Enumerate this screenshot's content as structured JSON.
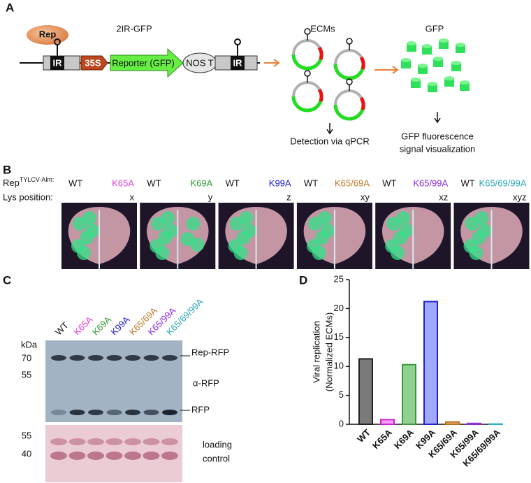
{
  "panel_a": {
    "letter": "A",
    "construct": "2IR-GFP",
    "rep": "Rep",
    "ir_left": "IR",
    "promoter": "35S",
    "reporter": "Reporter (GFP)",
    "terminator": "NOS T",
    "ir_right": "IR",
    "ecms": "ECMs",
    "gfp": "GFP",
    "detection": "Detection via qPCR",
    "visualization": [
      "GFP fluorescence",
      "signal visualization"
    ]
  },
  "panel_b": {
    "letter": "B",
    "rep": "Rep",
    "rep_sup": "TYLCV-Alm:",
    "lys_label": "Lys position:",
    "leaves": [
      {
        "wt": "WT",
        "mutant": "K65A",
        "color": "#e23fd7",
        "lys": "x"
      },
      {
        "wt": "WT",
        "mutant": "K69A",
        "color": "#2f9a2f",
        "lys": "y"
      },
      {
        "wt": "WT",
        "mutant": "K99A",
        "color": "#1a1ad0",
        "lys": "z"
      },
      {
        "wt": "WT",
        "mutant": "K65/69A",
        "color": "#c07a2a",
        "lys": "xy"
      },
      {
        "wt": "WT",
        "mutant": "K65/99A",
        "color": "#8a2be2",
        "lys": "xz"
      },
      {
        "wt": "WT",
        "mutant": "K65/69/99A",
        "color": "#2aa8b8",
        "lys": "xyz"
      }
    ]
  },
  "panel_c": {
    "letter": "C",
    "lanes": [
      {
        "label": "WT",
        "color": "#111111"
      },
      {
        "label": "K65A",
        "color": "#e23fd7"
      },
      {
        "label": "K69A",
        "color": "#2f9a2f"
      },
      {
        "label": "K99A",
        "color": "#1a1ad0"
      },
      {
        "label": "K65/69A",
        "color": "#c07a2a"
      },
      {
        "label": "K65/99A",
        "color": "#8a2be2"
      },
      {
        "label": "K65/69/99A",
        "color": "#2aa8b8"
      }
    ],
    "kda": "kDa",
    "blot_markers": [
      70,
      55
    ],
    "stain_markers": [
      55,
      40
    ],
    "rep_rfp": "Rep-RFP",
    "antibody": "α-RFP",
    "rfp": "RFP",
    "loading": [
      "loading",
      "control"
    ]
  },
  "panel_d": {
    "letter": "D"
  },
  "chart_data": {
    "type": "bar",
    "ylabel": [
      "Viral replication",
      "(Normalized ECMs)"
    ],
    "categories": [
      "WT",
      "K65A",
      "K69A",
      "K99A",
      "K65/69A",
      "K65/99A",
      "K65/69/99A"
    ],
    "values": [
      11.3,
      0.8,
      10.3,
      21.2,
      0.4,
      0.15,
      0.05
    ],
    "colors": [
      "#7a7a7a",
      "#f4a0f4",
      "#90d090",
      "#a0a8ff",
      "#f0b070",
      "#c890f0",
      "#90e0e8"
    ],
    "edge_colors": [
      "#222222",
      "#d020d0",
      "#3a9a3a",
      "#2020d0",
      "#c07020",
      "#9030d0",
      "#30b0c0"
    ],
    "ylim": [
      0,
      25
    ],
    "yticks": [
      0,
      5,
      10,
      15,
      20,
      25
    ]
  }
}
